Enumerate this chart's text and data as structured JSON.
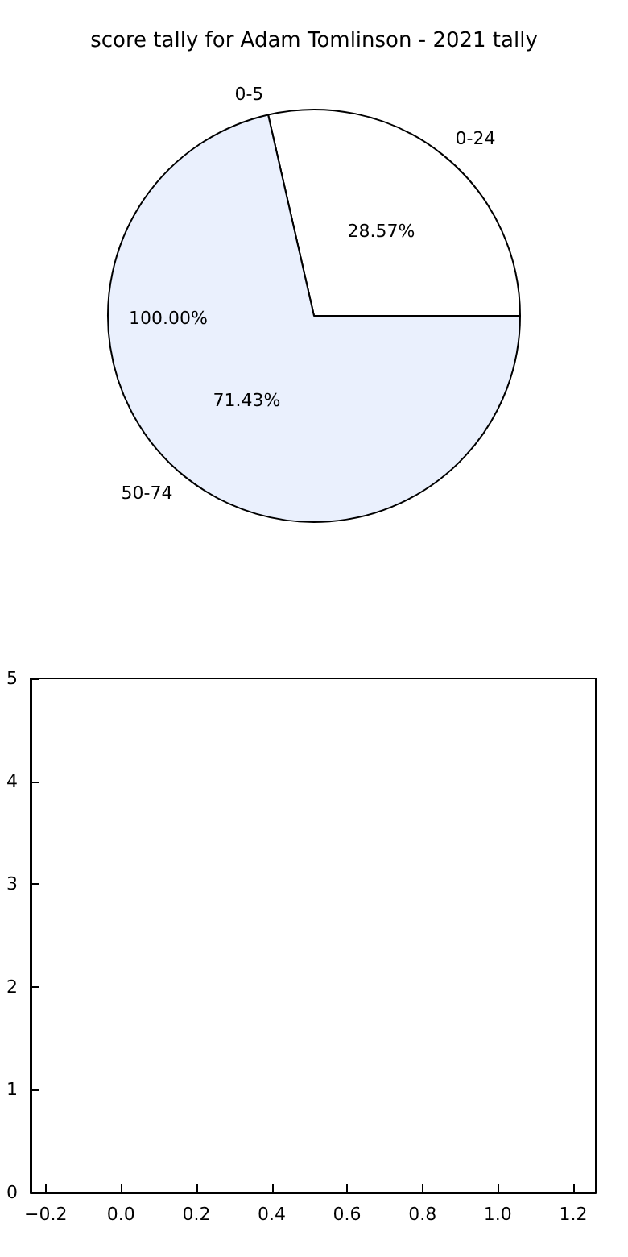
{
  "chart_data": [
    {
      "type": "pie",
      "title": "score tally for Adam Tomlinson - 2021 tally",
      "categories": [
        "0-24",
        "0-5",
        "50-74"
      ],
      "values": [
        28.57,
        0,
        71.43
      ],
      "colors": [
        "#ffffff",
        null,
        "#eaf0fd"
      ],
      "value_labels": [
        "28.57%",
        null,
        "71.43%"
      ],
      "annotations": [
        "100.00%"
      ]
    },
    {
      "type": "scatter",
      "xlim": [
        -0.24,
        1.26
      ],
      "ylim": [
        0,
        5
      ],
      "xticks": [
        {
          "value": -0.2,
          "label": "−0.2"
        },
        {
          "value": 0,
          "label": "0.0"
        },
        {
          "value": 0.2,
          "label": "0.2"
        },
        {
          "value": 0.4,
          "label": "0.4"
        },
        {
          "value": 0.6,
          "label": "0.6"
        },
        {
          "value": 0.8,
          "label": "0.8"
        },
        {
          "value": 1,
          "label": "1.0"
        },
        {
          "value": 1.2,
          "label": "1.2"
        }
      ],
      "yticks": [
        0,
        1,
        2,
        3,
        4,
        5
      ]
    }
  ]
}
